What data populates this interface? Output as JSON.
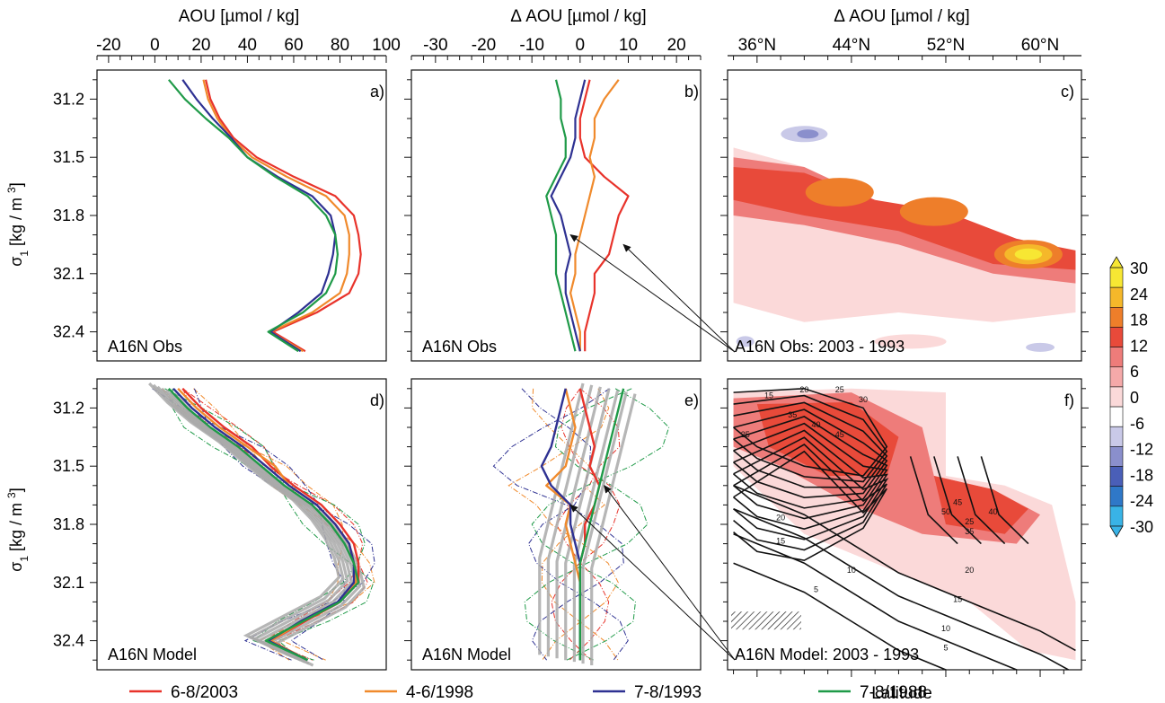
{
  "figure": {
    "colors": {
      "y2003": "#e8332b",
      "y1998": "#f08a2c",
      "y1993": "#2e3192",
      "y1988": "#1f9a48",
      "model_ensemble": "#a9a9a9"
    }
  },
  "chart_data": [
    {
      "panel": "a",
      "type": "line",
      "title": "AOU [µmol / kg]",
      "corner_label": "a)",
      "annotation": "A16N Obs",
      "ylabel": "σ1 [kg / m3]",
      "xlim": [
        -25,
        100
      ],
      "ylim": [
        32.55,
        31.05
      ],
      "xticks": [
        "-20",
        "0",
        "20",
        "40",
        "60",
        "80",
        "100"
      ],
      "yticks": [
        "31.2",
        "31.5",
        "31.8",
        "32.1",
        "32.4"
      ],
      "y": [
        31.1,
        31.2,
        31.3,
        31.4,
        31.5,
        31.6,
        31.7,
        31.8,
        31.9,
        32.0,
        32.1,
        32.2,
        32.3,
        32.4,
        32.5
      ],
      "series": [
        {
          "name": "6-8/2003",
          "color_key": "y2003",
          "values": [
            22,
            24,
            28,
            34,
            44,
            60,
            78,
            86,
            88,
            89,
            88,
            84,
            70,
            51,
            65
          ]
        },
        {
          "name": "4-6/1998",
          "color_key": "y1998",
          "values": [
            21,
            23,
            27,
            33,
            42,
            57,
            74,
            82,
            84,
            84,
            83,
            80,
            68,
            50,
            64
          ]
        },
        {
          "name": "7-8/1993",
          "color_key": "y1993",
          "values": [
            12,
            18,
            25,
            33,
            40,
            53,
            68,
            76,
            78,
            77,
            75,
            72,
            62,
            50,
            63
          ]
        },
        {
          "name": "7-8/1988",
          "color_key": "y1988",
          "values": [
            6,
            13,
            22,
            32,
            40,
            52,
            66,
            74,
            78,
            79,
            78,
            74,
            64,
            49,
            62
          ]
        }
      ]
    },
    {
      "panel": "b",
      "type": "line",
      "title": "Δ AOU [µmol / kg]",
      "corner_label": "b)",
      "annotation": "A16N Obs",
      "xlim": [
        -35,
        25
      ],
      "ylim": [
        32.55,
        31.05
      ],
      "xticks": [
        "-30",
        "-20",
        "-10",
        "0",
        "10",
        "20"
      ],
      "y": [
        31.1,
        31.2,
        31.3,
        31.4,
        31.5,
        31.6,
        31.7,
        31.8,
        31.9,
        32.0,
        32.1,
        32.2,
        32.3,
        32.4,
        32.5
      ],
      "series": [
        {
          "name": "6-8/2003",
          "color_key": "y2003",
          "values": [
            2,
            1,
            0,
            0,
            1,
            5,
            10,
            8,
            7,
            6,
            3,
            3,
            2,
            1,
            1
          ]
        },
        {
          "name": "4-6/1998",
          "color_key": "y1998",
          "values": [
            8,
            5,
            3,
            3,
            2,
            3,
            2,
            1,
            0,
            -1,
            -1,
            -2,
            -1,
            0,
            0
          ]
        },
        {
          "name": "7-8/1993",
          "color_key": "y1993",
          "values": [
            1,
            0,
            -1,
            -1,
            -2,
            -4,
            -6,
            -4,
            -3,
            -2,
            -3,
            -3,
            -2,
            -1,
            0
          ]
        },
        {
          "name": "7-8/1988",
          "color_key": "y1988",
          "values": [
            -5,
            -4,
            -4,
            -3,
            -3,
            -5,
            -7,
            -6,
            -5,
            -5,
            -5,
            -4,
            -3,
            -2,
            -1
          ]
        }
      ]
    },
    {
      "panel": "c",
      "type": "heatmap",
      "title": "Δ AOU [µmol / kg]",
      "corner_label": "c)",
      "annotation": "A16N Obs: 2003 - 1993",
      "xlabel": "Latitude",
      "xticks": [
        "36°N",
        "44°N",
        "52°N",
        "60°N"
      ],
      "colorbar": {
        "ticks": [
          "30",
          "24",
          "18",
          "12",
          "6",
          "0",
          "-6",
          "-12",
          "-18",
          "-24",
          "-30"
        ],
        "levels": [
          {
            "value": 27,
            "color": "#f7e733"
          },
          {
            "value": 21,
            "color": "#f5b82a"
          },
          {
            "value": 15,
            "color": "#ee7e2a"
          },
          {
            "value": 10,
            "color": "#e84a3a"
          },
          {
            "value": 7,
            "color": "#ee7c7a"
          },
          {
            "value": 4,
            "color": "#f5a9a9"
          },
          {
            "value": 2,
            "color": "#fbd9d9"
          },
          {
            "value": 0,
            "color": "#ffffff"
          },
          {
            "value": -4,
            "color": "#c9c9e8"
          },
          {
            "value": -9,
            "color": "#8a8fcc"
          },
          {
            "value": -15,
            "color": "#4a5fb8"
          },
          {
            "value": -21,
            "color": "#2f78c8"
          },
          {
            "value": -27,
            "color": "#39b3e6"
          }
        ]
      },
      "features": [
        {
          "kind": "core",
          "lat": 43,
          "sigma": 31.68,
          "value": 18
        },
        {
          "kind": "core",
          "lat": 51,
          "sigma": 31.78,
          "value": 14
        },
        {
          "kind": "core",
          "lat": 59,
          "sigma": 32.0,
          "value": 26
        },
        {
          "kind": "negative",
          "lat": 40,
          "sigma": 31.38,
          "value": -8
        }
      ]
    },
    {
      "panel": "d",
      "type": "line",
      "corner_label": "d)",
      "annotation": "A16N Model",
      "ylabel": "σ1 [kg / m3]",
      "xlim": [
        -25,
        100
      ],
      "ylim": [
        32.55,
        31.05
      ],
      "yticks": [
        "31.2",
        "31.5",
        "31.8",
        "32.1",
        "32.4"
      ],
      "y": [
        31.1,
        31.2,
        31.3,
        31.4,
        31.5,
        31.6,
        31.7,
        31.8,
        31.9,
        32.0,
        32.1,
        32.2,
        32.3,
        32.4,
        32.5
      ],
      "series": [
        {
          "name": "6-8/2003",
          "color_key": "y2003",
          "values": [
            12,
            20,
            30,
            42,
            50,
            60,
            72,
            80,
            86,
            88,
            88,
            80,
            65,
            50,
            66
          ]
        },
        {
          "name": "4-6/1998",
          "color_key": "y1998",
          "values": [
            10,
            18,
            28,
            40,
            52,
            58,
            70,
            78,
            84,
            86,
            87,
            80,
            64,
            50,
            66
          ]
        },
        {
          "name": "7-8/1993",
          "color_key": "y1993",
          "values": [
            8,
            16,
            26,
            38,
            48,
            58,
            70,
            78,
            84,
            86,
            86,
            79,
            63,
            49,
            66
          ]
        },
        {
          "name": "7-8/1988",
          "color_key": "y1988",
          "values": [
            6,
            14,
            24,
            36,
            46,
            56,
            68,
            76,
            82,
            86,
            88,
            80,
            64,
            48,
            66
          ]
        }
      ]
    },
    {
      "panel": "e",
      "type": "line",
      "corner_label": "e)",
      "annotation": "A16N Model",
      "xlim": [
        -35,
        25
      ],
      "ylim": [
        32.55,
        31.05
      ],
      "y": [
        31.1,
        31.2,
        31.3,
        31.4,
        31.5,
        31.6,
        31.7,
        31.8,
        31.9,
        32.0,
        32.1,
        32.2,
        32.3,
        32.4,
        32.5
      ],
      "series": [
        {
          "name": "6-8/2003",
          "color_key": "y2003",
          "values": [
            0,
            1,
            2,
            3,
            2,
            4,
            3,
            1,
            1,
            0,
            0,
            0,
            0,
            0,
            0
          ]
        },
        {
          "name": "4-6/1998",
          "color_key": "y1998",
          "values": [
            -3,
            -2,
            -1,
            -2,
            -3,
            -7,
            -2,
            -3,
            -2,
            -1,
            0,
            0,
            0,
            0,
            0
          ]
        },
        {
          "name": "7-8/1993",
          "color_key": "y1993",
          "values": [
            -3,
            -4,
            -5,
            -6,
            -8,
            -6,
            -2,
            -2,
            -1,
            0,
            0,
            0,
            0,
            0,
            0
          ]
        },
        {
          "name": "7-8/1988",
          "color_key": "y1988",
          "values": [
            9,
            8,
            7,
            6,
            5,
            4,
            3,
            2,
            1,
            0,
            0,
            0,
            0,
            0,
            0
          ]
        }
      ]
    },
    {
      "panel": "f",
      "type": "heatmap",
      "corner_label": "f)",
      "annotation": "A16N Model: 2003 - 1993",
      "contour_labels": [
        "15",
        "20",
        "25",
        "30",
        "35",
        "40",
        "45",
        "25",
        "50",
        "45",
        "40",
        "35",
        "25",
        "20",
        "15",
        "10",
        "5",
        "20",
        "15",
        "10",
        "5"
      ]
    }
  ],
  "legend": {
    "entries": [
      {
        "label": "6-8/2003",
        "color_key": "y2003"
      },
      {
        "label": "4-6/1998",
        "color_key": "y1998"
      },
      {
        "label": "7-8/1993",
        "color_key": "y1993"
      },
      {
        "label": "7-8/1988",
        "color_key": "y1988"
      }
    ]
  }
}
